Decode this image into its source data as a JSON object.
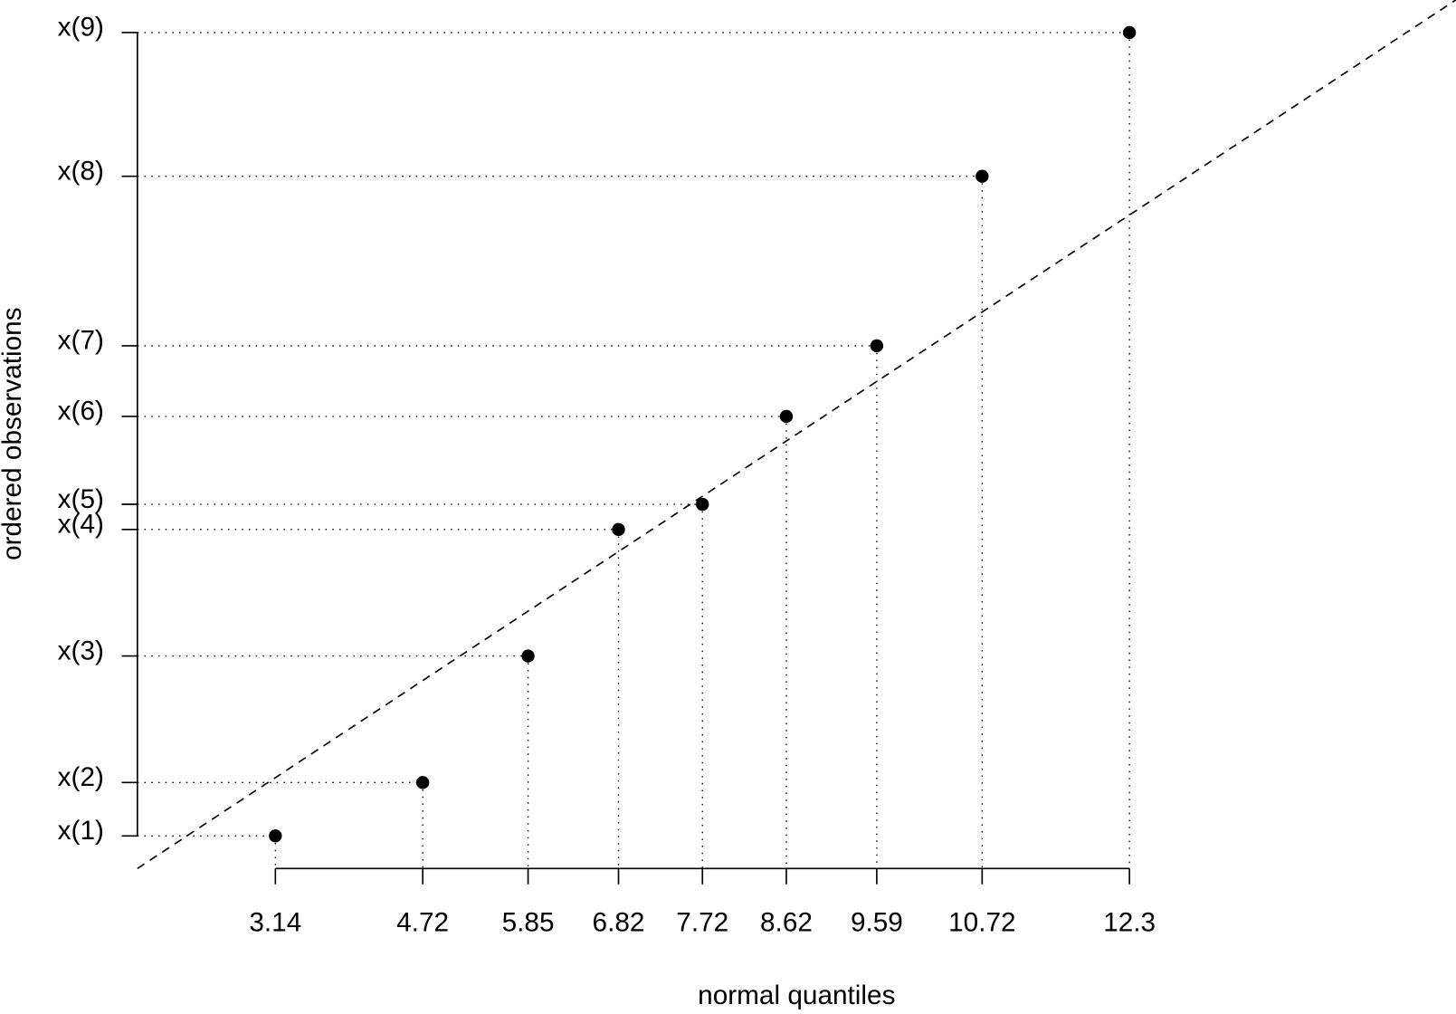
{
  "chart_data": {
    "type": "qq",
    "x_label": "normal quantiles",
    "y_label": "ordered observations",
    "x": [
      3.14,
      4.72,
      5.85,
      6.82,
      7.72,
      8.62,
      9.59,
      10.72,
      12.3
    ],
    "values": [
      2.19,
      3.06,
      5.12,
      7.18,
      7.59,
      9.02,
      10.17,
      12.93,
      15.27
    ],
    "color": "#000000",
    "xlim": [
      1.66,
      15.8
    ],
    "ylim": [
      1.66,
      15.8
    ],
    "xticks": [
      3.14,
      4.72,
      5.85,
      6.82,
      7.72,
      8.62,
      9.59,
      10.72,
      12.3
    ],
    "yticks": [
      {
        "value": 2.19,
        "label": "x(1)"
      },
      {
        "value": 3.06,
        "label": "x(2)"
      },
      {
        "value": 5.12,
        "label": "x(3)"
      },
      {
        "value": 7.18,
        "label": "x(4)"
      },
      {
        "value": 7.59,
        "label": "x(5)"
      },
      {
        "value": 9.02,
        "label": "x(6)"
      },
      {
        "value": 10.17,
        "label": "x(7)"
      },
      {
        "value": 12.93,
        "label": "x(8)"
      },
      {
        "value": 15.27,
        "label": "x(9)"
      }
    ],
    "reference_line": {
      "intercept": 0,
      "slope": 1
    }
  }
}
